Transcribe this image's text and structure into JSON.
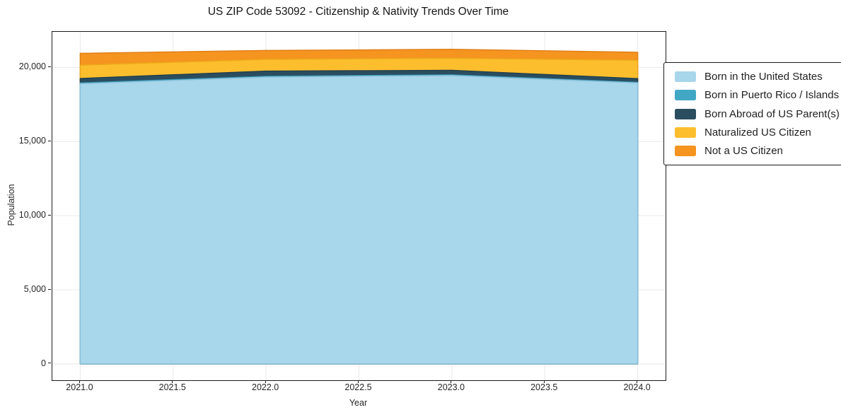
{
  "title": "US ZIP Code 53092 - Citizenship & Nativity Trends Over Time",
  "axes": {
    "x_label": "Year",
    "y_label": "Population"
  },
  "chart_data": {
    "type": "area",
    "stacked": true,
    "title": "US ZIP Code 53092 - Citizenship & Nativity Trends Over Time",
    "xlabel": "Year",
    "ylabel": "Population",
    "x": [
      2021,
      2022,
      2023,
      2024
    ],
    "series": [
      {
        "name": "Born in the United States",
        "color": "#a8d6ea",
        "edge": "#8cc2dc",
        "values": [
          18900,
          19350,
          19450,
          18950
        ]
      },
      {
        "name": "Born in Puerto Rico / Islands",
        "color": "#41a7c5",
        "edge": "#3492af",
        "values": [
          50,
          50,
          50,
          40
        ]
      },
      {
        "name": "Born Abroad of US Parent(s)",
        "color": "#2a4d5f",
        "edge": "#22404f",
        "values": [
          300,
          350,
          300,
          250
        ]
      },
      {
        "name": "Naturalized US Citizen",
        "color": "#fcbe2d",
        "edge": "#eda81a",
        "values": [
          900,
          790,
          820,
          1240
        ]
      },
      {
        "name": "Not a US Citizen",
        "color": "#f5941f",
        "edge": "#e0801a",
        "values": [
          800,
          600,
          600,
          540
        ]
      }
    ],
    "stack_totals": [
      20950,
      21140,
      21220,
      21020
    ],
    "xlim": [
      2020.85,
      2024.15
    ],
    "ylim": [
      -1100,
      22400
    ],
    "x_ticks": [
      {
        "value": 2021.0,
        "label": "2021.0"
      },
      {
        "value": 2021.5,
        "label": "2021.5"
      },
      {
        "value": 2022.0,
        "label": "2022.0"
      },
      {
        "value": 2022.5,
        "label": "2022.5"
      },
      {
        "value": 2023.0,
        "label": "2023.0"
      },
      {
        "value": 2023.5,
        "label": "2023.5"
      },
      {
        "value": 2024.0,
        "label": "2024.0"
      }
    ],
    "y_ticks": [
      {
        "value": 0,
        "label": "0"
      },
      {
        "value": 5000,
        "label": "5,000"
      },
      {
        "value": 10000,
        "label": "10,000"
      },
      {
        "value": 15000,
        "label": "15,000"
      },
      {
        "value": 20000,
        "label": "20,000"
      }
    ],
    "grid": true,
    "grid_color": "#e9e9e9",
    "legend_position": "outside-right"
  }
}
